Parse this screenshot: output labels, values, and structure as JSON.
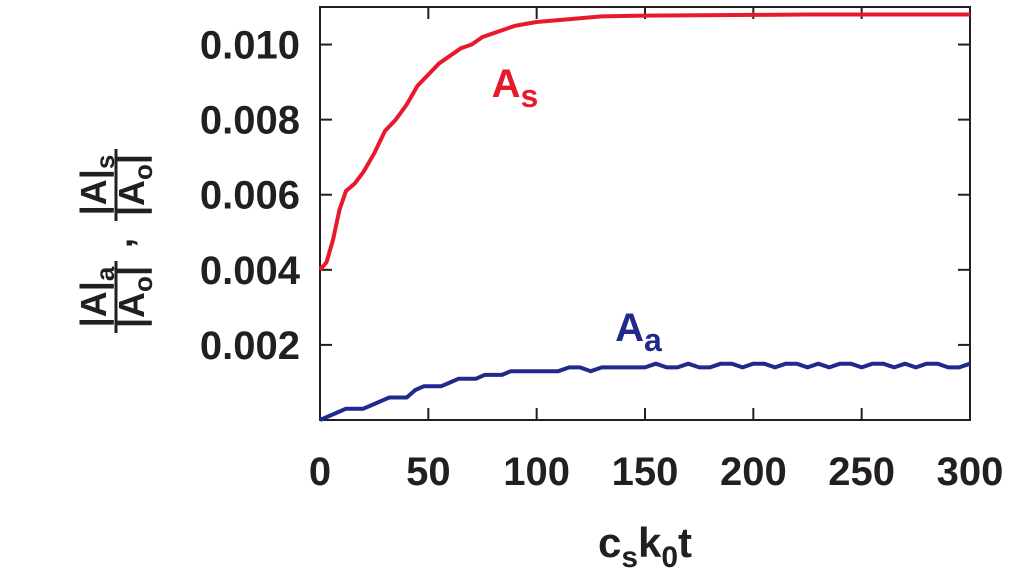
{
  "chart_data": {
    "type": "line",
    "title": "",
    "xlabel": {
      "main": "c",
      "sub1": "s",
      "mid": "k",
      "sub2": "0",
      "tail": "t"
    },
    "ylabel": {
      "left_num": "|A|",
      "left_num_sub": "a",
      "left_den": "|A",
      "left_den_sub": "o",
      "left_den_tail": "|",
      "sep": ",",
      "right_num": "|A|",
      "right_num_sub": "s",
      "right_den": "|A",
      "right_den_sub": "o",
      "right_den_tail": "|"
    },
    "xlim": [
      0,
      300
    ],
    "ylim": [
      0,
      0.011
    ],
    "x_ticks": [
      0,
      50,
      100,
      150,
      200,
      250,
      300
    ],
    "x_tick_labels": [
      "0",
      "50",
      "100",
      "150",
      "200",
      "250",
      "300"
    ],
    "y_ticks": [
      0.002,
      0.004,
      0.006,
      0.008,
      0.01
    ],
    "y_tick_labels": [
      "0.002",
      "0.004",
      "0.006",
      "0.008",
      "0.010"
    ],
    "grid": false,
    "series": [
      {
        "name": "As",
        "label_main": "A",
        "label_sub": "s",
        "color": "#e8192c",
        "x": [
          0,
          3,
          6,
          9,
          12,
          16,
          20,
          25,
          30,
          35,
          40,
          45,
          50,
          55,
          60,
          65,
          70,
          75,
          80,
          85,
          90,
          95,
          100,
          110,
          120,
          130,
          140,
          150,
          175,
          200,
          225,
          250,
          275,
          300
        ],
        "y": [
          0.004,
          0.0042,
          0.0048,
          0.0056,
          0.0061,
          0.0063,
          0.0066,
          0.0071,
          0.0077,
          0.008,
          0.0084,
          0.0089,
          0.0092,
          0.0095,
          0.0097,
          0.0099,
          0.01,
          0.0102,
          0.0103,
          0.0104,
          0.0105,
          0.01055,
          0.0106,
          0.01065,
          0.0107,
          0.01075,
          0.01076,
          0.01077,
          0.01078,
          0.01079,
          0.0108,
          0.0108,
          0.0108,
          0.0108
        ]
      },
      {
        "name": "Aa",
        "label_main": "A",
        "label_sub": "a",
        "color": "#1f2a8c",
        "x": [
          0,
          4,
          8,
          12,
          16,
          20,
          24,
          28,
          32,
          36,
          40,
          44,
          48,
          52,
          56,
          60,
          64,
          68,
          72,
          76,
          80,
          84,
          88,
          92,
          96,
          100,
          105,
          110,
          115,
          120,
          125,
          130,
          135,
          140,
          145,
          150,
          155,
          160,
          165,
          170,
          175,
          180,
          185,
          190,
          195,
          200,
          205,
          210,
          215,
          220,
          225,
          230,
          235,
          240,
          245,
          250,
          255,
          260,
          265,
          270,
          275,
          280,
          285,
          290,
          295,
          300
        ],
        "y": [
          0.0,
          0.0001,
          0.0002,
          0.0003,
          0.0003,
          0.0003,
          0.0004,
          0.0005,
          0.0006,
          0.0006,
          0.0006,
          0.0008,
          0.0009,
          0.0009,
          0.0009,
          0.001,
          0.0011,
          0.0011,
          0.0011,
          0.0012,
          0.0012,
          0.0012,
          0.0013,
          0.0013,
          0.0013,
          0.0013,
          0.0013,
          0.0013,
          0.0014,
          0.0014,
          0.0013,
          0.0014,
          0.0014,
          0.0014,
          0.0014,
          0.0014,
          0.0015,
          0.0014,
          0.0014,
          0.0015,
          0.0014,
          0.0014,
          0.0015,
          0.0015,
          0.0014,
          0.0015,
          0.0015,
          0.0014,
          0.0015,
          0.0015,
          0.0014,
          0.0015,
          0.0014,
          0.0015,
          0.0015,
          0.0014,
          0.0015,
          0.0015,
          0.0014,
          0.0015,
          0.0014,
          0.0015,
          0.0015,
          0.0014,
          0.0014,
          0.0015
        ]
      }
    ]
  }
}
